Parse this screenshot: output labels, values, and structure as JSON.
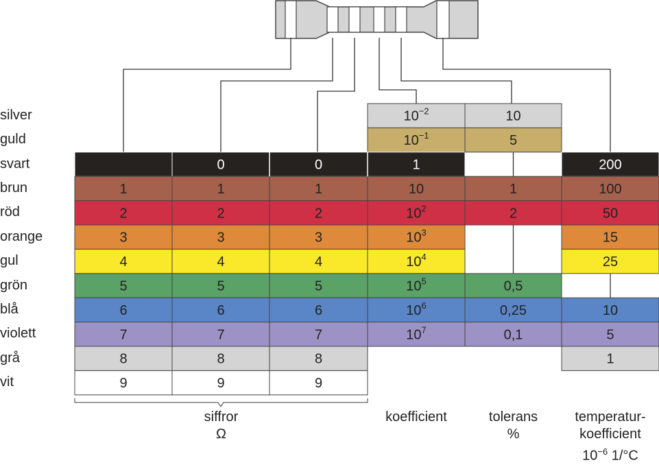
{
  "rows": [
    {
      "label": "silver",
      "color": "#d4d4d4"
    },
    {
      "label": "guld",
      "color": "#c8ae6b"
    },
    {
      "label": "svart",
      "color": "#262220"
    },
    {
      "label": "brun",
      "color": "#a5614c"
    },
    {
      "label": "röd",
      "color": "#cf3045"
    },
    {
      "label": "orange",
      "color": "#de8a3a"
    },
    {
      "label": "gul",
      "color": "#fae92a"
    },
    {
      "label": "grön",
      "color": "#5aa265"
    },
    {
      "label": "blå",
      "color": "#5a86c8"
    },
    {
      "label": "violett",
      "color": "#9c92c6"
    },
    {
      "label": "grå",
      "color": "#d4d4d4"
    },
    {
      "label": "vit",
      "color": "#ffffff"
    }
  ],
  "columns": {
    "digit1": {
      "svart": "",
      "brun": "1",
      "röd": "2",
      "orange": "3",
      "gul": "4",
      "grön": "5",
      "blå": "6",
      "violett": "7",
      "grå": "8",
      "vit": "9"
    },
    "digit2": {
      "svart": "0",
      "brun": "1",
      "röd": "2",
      "orange": "3",
      "gul": "4",
      "grön": "5",
      "blå": "6",
      "violett": "7",
      "grå": "8",
      "vit": "9"
    },
    "digit3": {
      "svart": "0",
      "brun": "1",
      "röd": "2",
      "orange": "3",
      "gul": "4",
      "grön": "5",
      "blå": "6",
      "violett": "7",
      "grå": "8",
      "vit": "9"
    },
    "multiplier": {
      "silver": [
        "10",
        "−2"
      ],
      "guld": [
        "10",
        "−1"
      ],
      "svart": [
        "1",
        ""
      ],
      "brun": [
        "10",
        ""
      ],
      "röd": [
        "10",
        "2"
      ],
      "orange": [
        "10",
        "3"
      ],
      "gul": [
        "10",
        "4"
      ],
      "grön": [
        "10",
        "5"
      ],
      "blå": [
        "10",
        "6"
      ],
      "violett": [
        "10",
        "7"
      ]
    },
    "tolerance": {
      "silver": "10",
      "guld": "5",
      "brun": "1",
      "röd": "2",
      "grön": "0,5",
      "blå": "0,25",
      "violett": "0,1"
    },
    "tempco": {
      "svart": "200",
      "brun": "100",
      "röd": "50",
      "orange": "15",
      "gul": "25",
      "blå": "10",
      "violett": "5",
      "grå": "1"
    }
  },
  "footer": {
    "digits_label": "siffror",
    "digits_unit": "Ω",
    "coefficient": "koefficient",
    "tolerance": "tolerans",
    "tolerance_unit": "%",
    "tempco_line1": "temperatur-",
    "tempco_line2": "koefficient",
    "tempco_line3_base": "10",
    "tempco_line3_exp": "−6",
    "tempco_line3_unit": " 1/°C"
  },
  "colors": {
    "text_light": "#ffffff",
    "text_dark": "#222222",
    "resistor_body": "#d4d4d4",
    "outline": "#444444"
  }
}
